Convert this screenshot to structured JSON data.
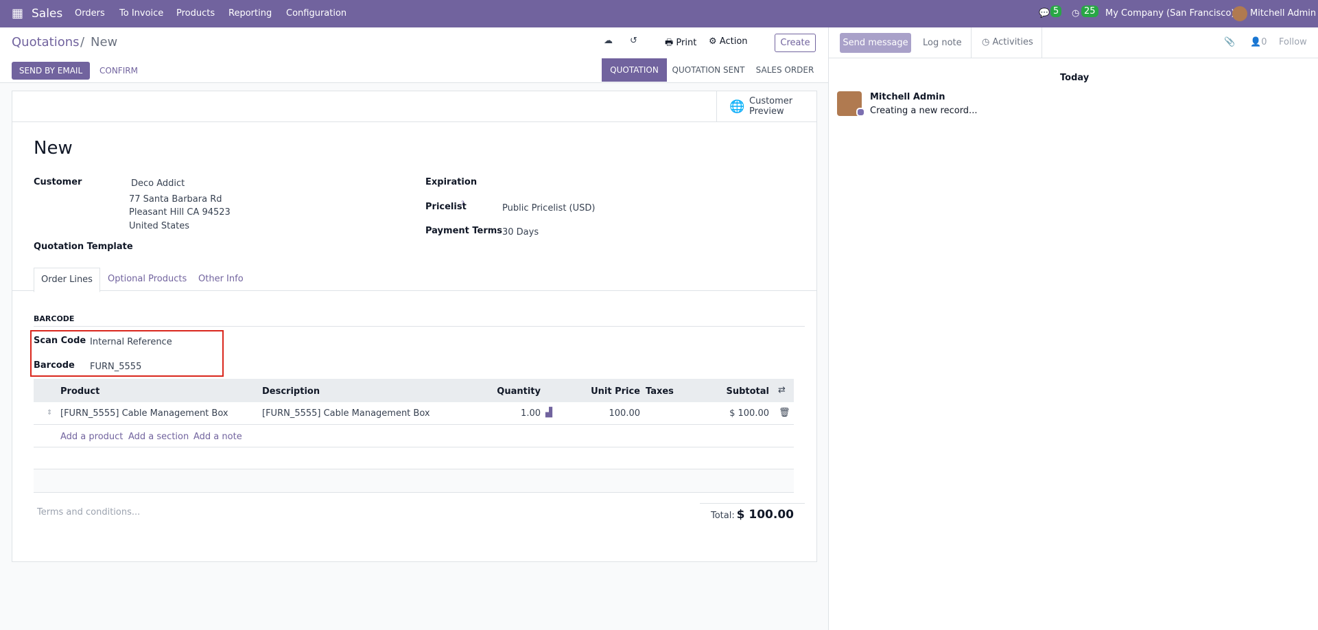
{
  "navbar": {
    "app": "Sales",
    "menu": [
      "Orders",
      "To Invoice",
      "Products",
      "Reporting",
      "Configuration"
    ],
    "message_badge": 5,
    "activity_badge": 25,
    "company": "My Company (San Francisco)",
    "user": "Mitchell Admin"
  },
  "control_panel": {
    "breadcrumb_parent": "Quotations",
    "breadcrumb_separator": "/",
    "breadcrumb_current": "New",
    "print": "Print",
    "action": "Action",
    "create": "Create",
    "send_by_email": "SEND BY EMAIL",
    "confirm": "CONFIRM",
    "stages": [
      "QUOTATION",
      "QUOTATION SENT",
      "SALES ORDER"
    ]
  },
  "form": {
    "customer_preview": "Customer Preview",
    "title": "New",
    "customer_label": "Customer",
    "customer": "Deco Addict",
    "address": [
      "77 Santa Barbara Rd",
      "Pleasant Hill CA 94523",
      "United States"
    ],
    "quotation_template_label": "Quotation Template",
    "expiration_label": "Expiration",
    "pricelist_label": "Pricelist",
    "pricelist_help": "?",
    "pricelist": "Public Pricelist (USD)",
    "payment_terms_label": "Payment Terms",
    "payment_terms": "30 Days",
    "tabs": [
      "Order Lines",
      "Optional Products",
      "Other Info"
    ],
    "barcode_section": "BARCODE",
    "scan_code_label": "Scan Code",
    "scan_code": "Internal Reference",
    "barcode_label": "Barcode",
    "barcode": "FURN_5555",
    "table": {
      "headers": [
        "Product",
        "Description",
        "Quantity",
        "Unit Price",
        "Taxes",
        "Subtotal"
      ],
      "rows": [
        {
          "product": "[FURN_5555] Cable Management Box",
          "description": "[FURN_5555] Cable Management Box",
          "quantity": "1.00",
          "unit_price": "100.00",
          "subtotal": "$ 100.00"
        }
      ],
      "add_links": [
        "Add a product",
        "Add a section",
        "Add a note"
      ]
    },
    "terms_placeholder": "Terms and conditions...",
    "total_label": "Total:",
    "total": "$ 100.00"
  },
  "chatter": {
    "send_message": "Send message",
    "log_note": "Log note",
    "activities": "Activities",
    "followers": 0,
    "follow": "Follow",
    "date": "Today",
    "author": "Mitchell Admin",
    "message": "Creating a new record..."
  }
}
